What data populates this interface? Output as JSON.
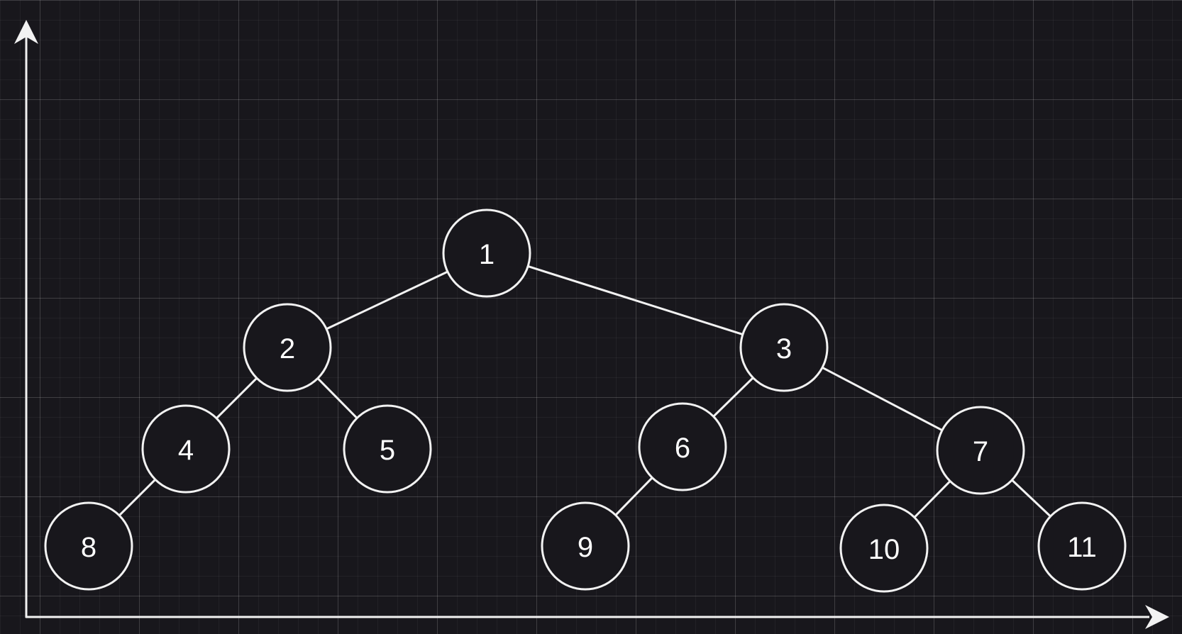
{
  "diagram": {
    "type": "binary-tree",
    "nodes": [
      {
        "id": "1",
        "label": "1"
      },
      {
        "id": "2",
        "label": "2"
      },
      {
        "id": "3",
        "label": "3"
      },
      {
        "id": "4",
        "label": "4"
      },
      {
        "id": "5",
        "label": "5"
      },
      {
        "id": "6",
        "label": "6"
      },
      {
        "id": "7",
        "label": "7"
      },
      {
        "id": "8",
        "label": "8"
      },
      {
        "id": "9",
        "label": "9"
      },
      {
        "id": "10",
        "label": "10"
      },
      {
        "id": "11",
        "label": "11"
      }
    ],
    "edges": [
      {
        "from": "1",
        "to": "2"
      },
      {
        "from": "1",
        "to": "3"
      },
      {
        "from": "2",
        "to": "4"
      },
      {
        "from": "2",
        "to": "5"
      },
      {
        "from": "4",
        "to": "8"
      },
      {
        "from": "3",
        "to": "6"
      },
      {
        "from": "3",
        "to": "7"
      },
      {
        "from": "6",
        "to": "9"
      },
      {
        "from": "7",
        "to": "10"
      },
      {
        "from": "7",
        "to": "11"
      }
    ]
  },
  "colors": {
    "background": "#18171c",
    "stroke": "#f2f2f2",
    "text": "#ffffff"
  }
}
